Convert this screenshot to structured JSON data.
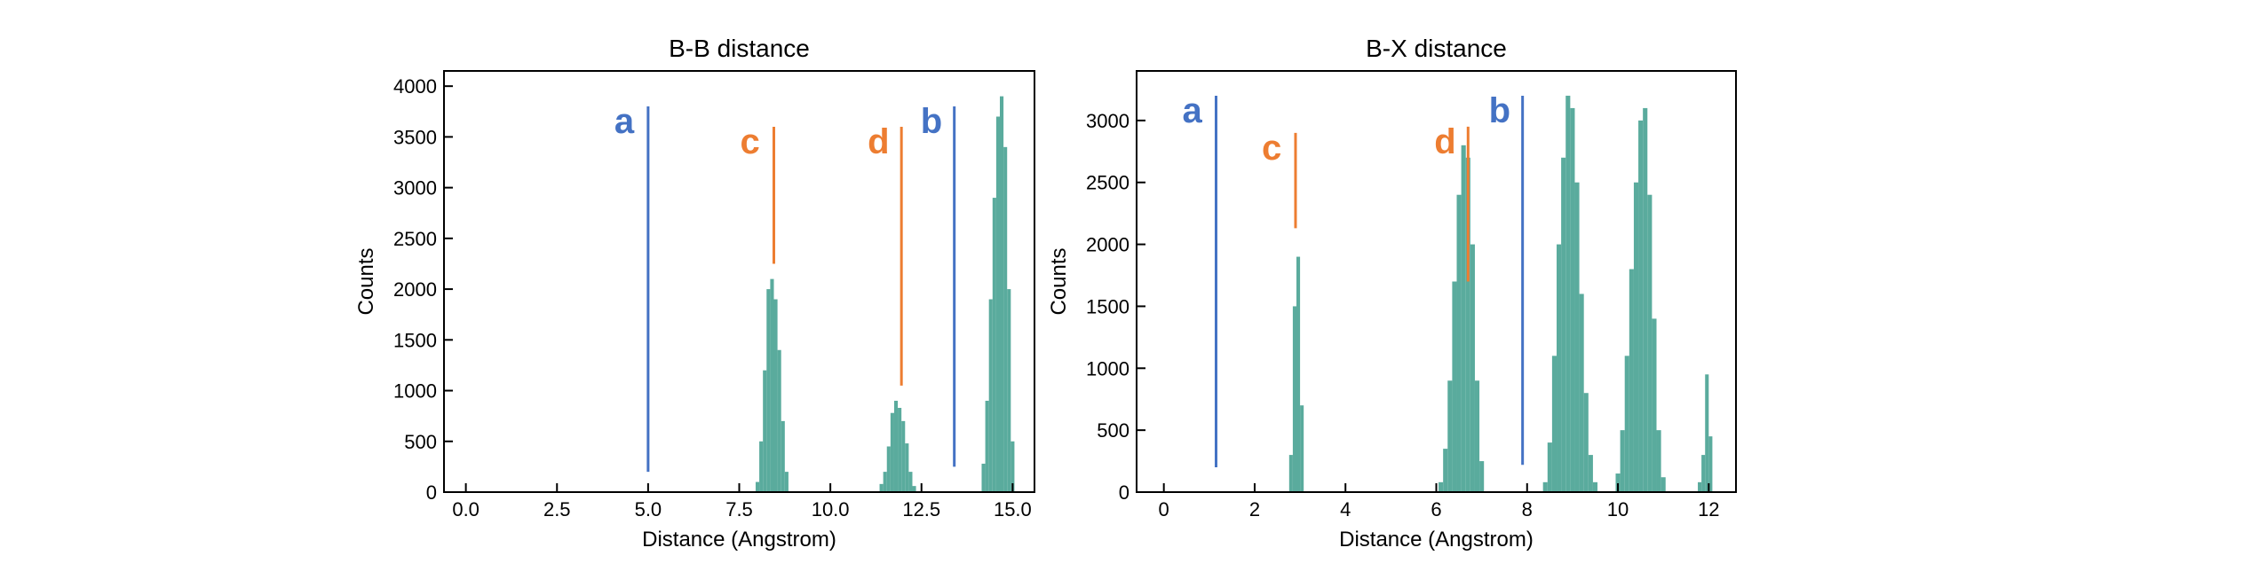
{
  "chart_data": [
    {
      "type": "bar",
      "title": "B-B distance",
      "xlabel": "Distance (Angstrom)",
      "ylabel": "Counts",
      "xlim": [
        -0.6,
        15.6
      ],
      "ylim": [
        0,
        4150
      ],
      "xticks": [
        0.0,
        2.5,
        5.0,
        7.5,
        10.0,
        12.5,
        15.0
      ],
      "xtick_labels": [
        "0.0",
        "2.5",
        "5.0",
        "7.5",
        "10.0",
        "12.5",
        "15.0"
      ],
      "yticks": [
        0,
        500,
        1000,
        1500,
        2000,
        2500,
        3000,
        3500,
        4000
      ],
      "ytick_labels": [
        "0",
        "500",
        "1000",
        "1500",
        "2000",
        "2500",
        "3000",
        "3500",
        "4000"
      ],
      "bar_color": "#5aab9d",
      "histogram": {
        "x": [
          8.0,
          8.1,
          8.2,
          8.3,
          8.4,
          8.5,
          8.6,
          8.7,
          8.8,
          11.4,
          11.5,
          11.6,
          11.7,
          11.8,
          11.9,
          12.0,
          12.1,
          12.2,
          12.3,
          14.2,
          14.3,
          14.4,
          14.5,
          14.6,
          14.7,
          14.8,
          14.9,
          15.0
        ],
        "y": [
          100,
          500,
          1200,
          2000,
          2100,
          1900,
          1400,
          700,
          200,
          80,
          200,
          450,
          780,
          900,
          830,
          700,
          480,
          200,
          60,
          280,
          900,
          1900,
          2900,
          3700,
          3900,
          3400,
          2000,
          500
        ]
      },
      "annotations": [
        {
          "label": "a",
          "x": 5.0,
          "y_min": 200,
          "y_max": 3800,
          "color": "#4472c4"
        },
        {
          "label": "c",
          "x": 8.45,
          "y_min": 2250,
          "y_max": 3600,
          "color": "#ed7d31"
        },
        {
          "label": "d",
          "x": 11.95,
          "y_min": 1050,
          "y_max": 3600,
          "color": "#ed7d31"
        },
        {
          "label": "b",
          "x": 13.4,
          "y_min": 250,
          "y_max": 3800,
          "color": "#4472c4"
        }
      ]
    },
    {
      "type": "bar",
      "title": "B-X distance",
      "xlabel": "Distance (Angstrom)",
      "ylabel": "Counts",
      "xlim": [
        -0.6,
        12.6
      ],
      "ylim": [
        0,
        3400
      ],
      "xticks": [
        0,
        2,
        4,
        6,
        8,
        10,
        12
      ],
      "xtick_labels": [
        "0",
        "2",
        "4",
        "6",
        "8",
        "10",
        "12"
      ],
      "yticks": [
        0,
        500,
        1000,
        1500,
        2000,
        2500,
        3000
      ],
      "ytick_labels": [
        "0",
        "500",
        "1000",
        "1500",
        "2000",
        "2500",
        "3000"
      ],
      "bar_color": "#5aab9d",
      "histogram": {
        "x": [
          2.8,
          2.88,
          2.96,
          3.04,
          6.1,
          6.2,
          6.3,
          6.4,
          6.5,
          6.6,
          6.7,
          6.8,
          6.9,
          7.0,
          8.4,
          8.5,
          8.6,
          8.7,
          8.8,
          8.9,
          9.0,
          9.1,
          9.2,
          9.3,
          9.4,
          9.5,
          10.0,
          10.1,
          10.2,
          10.3,
          10.4,
          10.5,
          10.6,
          10.7,
          10.8,
          10.9,
          11.0,
          11.8,
          11.88,
          11.96,
          12.04
        ],
        "y": [
          300,
          1500,
          1900,
          700,
          80,
          350,
          900,
          1700,
          2400,
          2800,
          2700,
          2000,
          900,
          250,
          80,
          400,
          1100,
          2000,
          2700,
          3200,
          3100,
          2500,
          1600,
          800,
          300,
          80,
          150,
          500,
          1100,
          1800,
          2500,
          3000,
          3100,
          2400,
          1400,
          500,
          120,
          80,
          300,
          950,
          450
        ],
        "bin_width_x": [
          0.08,
          0.08,
          0.08,
          0.08,
          0.1,
          0.1,
          0.1,
          0.1,
          0.1,
          0.1,
          0.1,
          0.1,
          0.1,
          0.1,
          0.1,
          0.1,
          0.1,
          0.1,
          0.1,
          0.1,
          0.1,
          0.1,
          0.1,
          0.1,
          0.1,
          0.1,
          0.1,
          0.1,
          0.1,
          0.1,
          0.1,
          0.1,
          0.1,
          0.1,
          0.1,
          0.1,
          0.1,
          0.08,
          0.08,
          0.08,
          0.08
        ]
      },
      "annotations": [
        {
          "label": "a",
          "x": 1.15,
          "y_min": 200,
          "y_max": 3200,
          "color": "#4472c4"
        },
        {
          "label": "c",
          "x": 2.9,
          "y_min": 2130,
          "y_max": 2900,
          "color": "#ed7d31"
        },
        {
          "label": "d",
          "x": 6.7,
          "y_min": 1700,
          "y_max": 2950,
          "color": "#ed7d31"
        },
        {
          "label": "b",
          "x": 7.9,
          "y_min": 220,
          "y_max": 3200,
          "color": "#4472c4"
        }
      ]
    }
  ]
}
